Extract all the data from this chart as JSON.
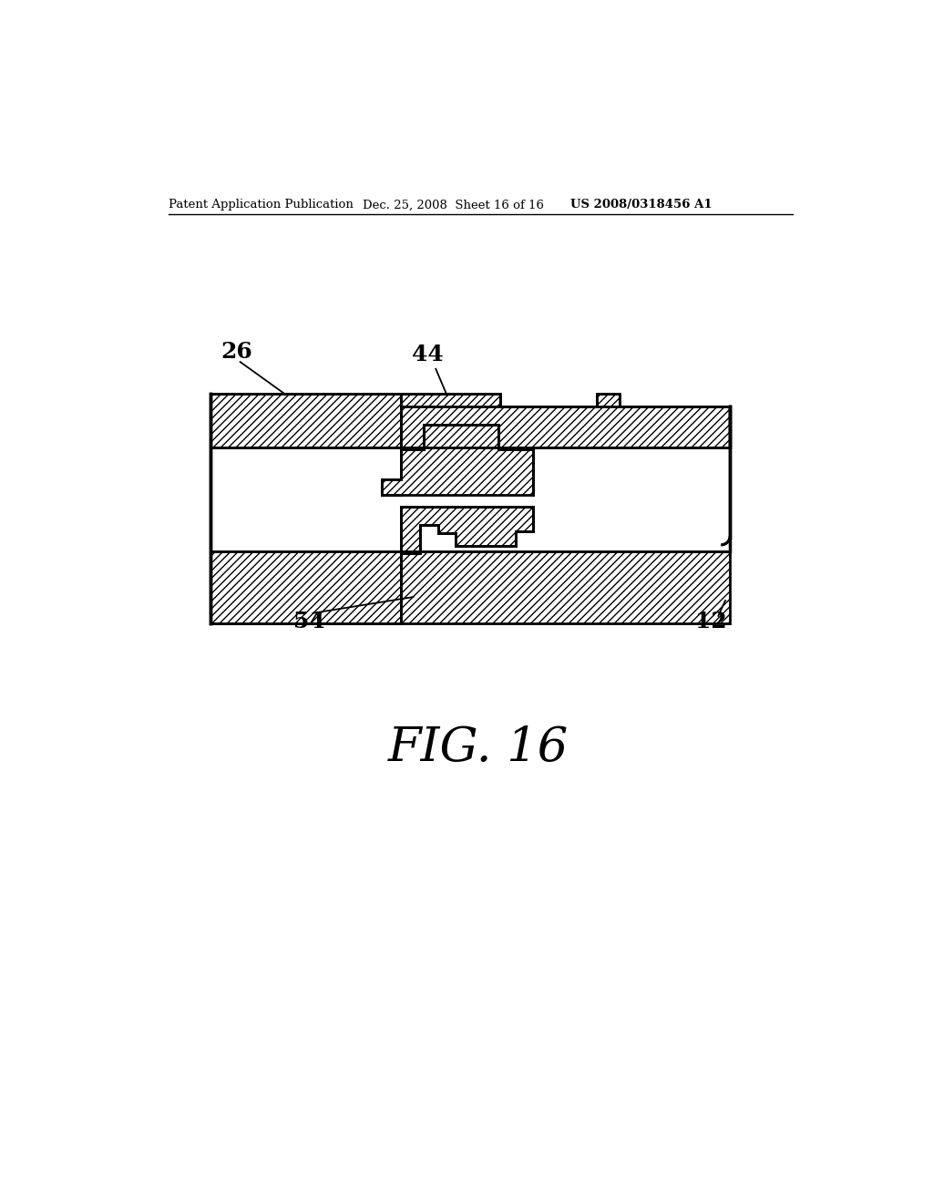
{
  "background_color": "#ffffff",
  "header_left": "Patent Application Publication",
  "header_center": "Dec. 25, 2008  Sheet 16 of 16",
  "header_right": "US 2008/0318456 A1",
  "fig_label": "FIG. 16",
  "label_26": "26",
  "label_44": "44",
  "label_54": "54",
  "label_12": "12",
  "line_color": "#000000"
}
